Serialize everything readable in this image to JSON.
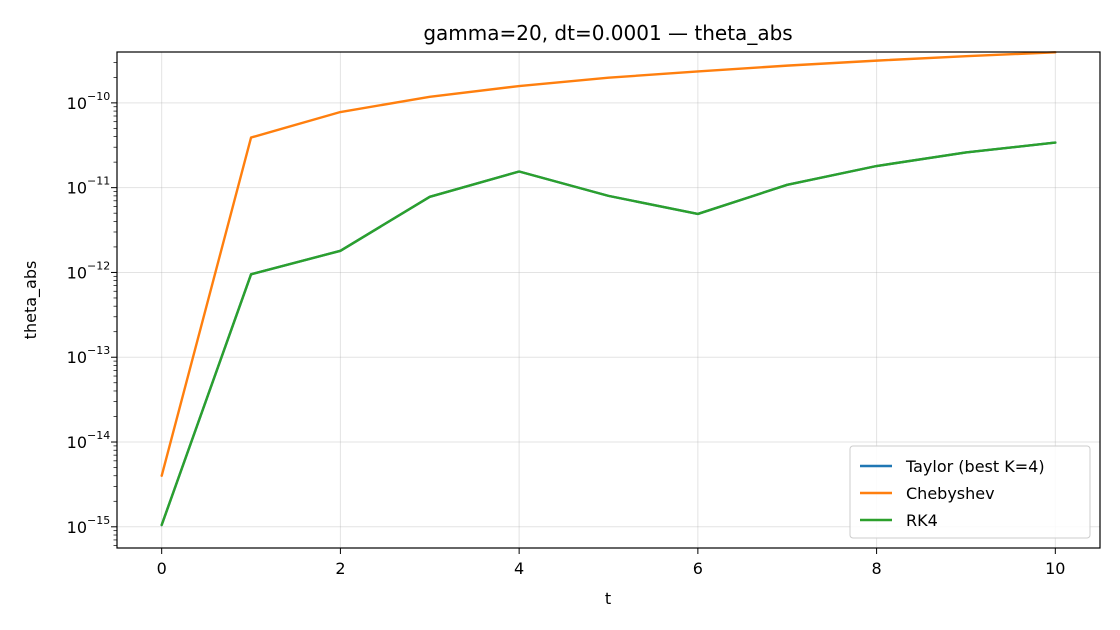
{
  "chart_data": {
    "type": "line",
    "title": "gamma=20, dt=0.0001 — theta_abs",
    "xlabel": "t",
    "ylabel": "theta_abs",
    "yscale": "log",
    "xlim": [
      -0.5,
      10.5
    ],
    "ylim_exp": [
      -15.25,
      -9.4
    ],
    "grid": true,
    "legend_position": "lower-right",
    "x_ticks": [
      0,
      2,
      4,
      6,
      8,
      10
    ],
    "y_ticks_exp": [
      -15,
      -14,
      -13,
      -12,
      -11,
      -10
    ],
    "x": [
      0,
      1,
      2,
      3,
      4,
      5,
      6,
      7,
      8,
      9,
      10
    ],
    "series": [
      {
        "name": "Taylor (best K=4)",
        "color": "#1f77b4",
        "values": [
          1.05e-15,
          9.5e-13,
          1.8e-12,
          7.8e-12,
          1.55e-11,
          8e-12,
          4.9e-12,
          1.08e-11,
          1.8e-11,
          2.6e-11,
          3.4e-11
        ]
      },
      {
        "name": "Chebyshev",
        "color": "#ff7f0e",
        "values": [
          4e-15,
          3.9e-11,
          7.8e-11,
          1.18e-10,
          1.58e-10,
          1.98e-10,
          2.35e-10,
          2.75e-10,
          3.15e-10,
          3.55e-10,
          3.95e-10
        ]
      },
      {
        "name": "RK4",
        "color": "#2ca02c",
        "values": [
          1.05e-15,
          9.5e-13,
          1.8e-12,
          7.8e-12,
          1.55e-11,
          8e-12,
          4.9e-12,
          1.08e-11,
          1.8e-11,
          2.6e-11,
          3.4e-11
        ]
      }
    ]
  }
}
